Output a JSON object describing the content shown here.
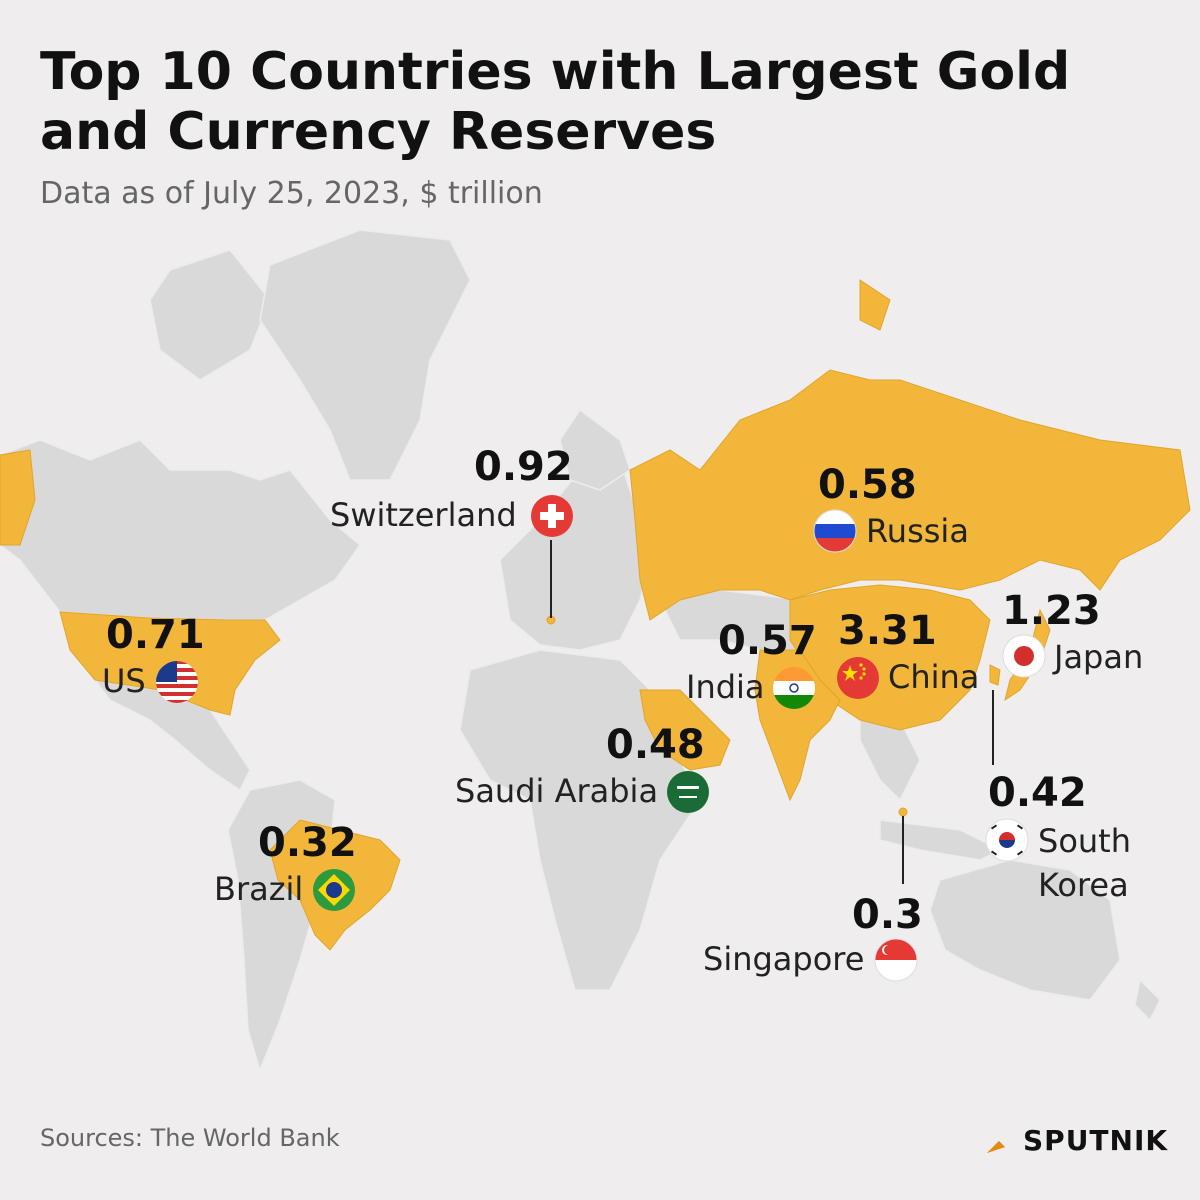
{
  "title": "Top 10 Countries with Largest Gold and Currency Reserves",
  "subtitle": "Data as of July 25, 2023, $ trillion",
  "colors": {
    "highlight": "#f2b73a",
    "land": "#d9d9d9",
    "background": "#efeded"
  },
  "countries": {
    "switzerland": {
      "name": "Switzerland",
      "value": "0.92"
    },
    "russia": {
      "name": "Russia",
      "value": "0.58"
    },
    "us": {
      "name": "US",
      "value": "0.71"
    },
    "india": {
      "name": "India",
      "value": "0.57"
    },
    "china": {
      "name": "China",
      "value": "3.31"
    },
    "japan": {
      "name": "Japan",
      "value": "1.23"
    },
    "saudi_arabia": {
      "name": "Saudi Arabia",
      "value": "0.48"
    },
    "south_korea": {
      "name_line1": "South",
      "name_line2": "Korea",
      "value": "0.42"
    },
    "brazil": {
      "name": "Brazil",
      "value": "0.32"
    },
    "singapore": {
      "name": "Singapore",
      "value": "0.3"
    }
  },
  "footer": {
    "source": "Sources: The World Bank",
    "brand": "SPUTNIK"
  }
}
